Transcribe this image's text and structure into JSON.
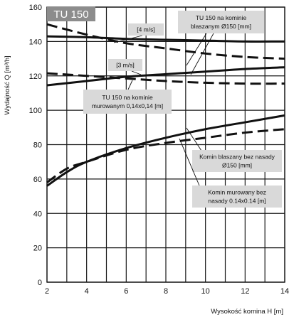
{
  "chart_data": {
    "type": "line",
    "badge": "TU 150",
    "xlabel": "Wysokość komina H [m]",
    "ylabel": "Wydajność Q [m³/h]",
    "xlim": [
      2,
      14
    ],
    "ylim": [
      0,
      160
    ],
    "x_ticks": [
      "2",
      "4",
      "6",
      "8",
      "10",
      "12",
      "14"
    ],
    "y_ticks": [
      "0",
      "20",
      "40",
      "60",
      "80",
      "100",
      "120",
      "140",
      "160"
    ],
    "grid": true,
    "series": [
      {
        "style": "solid",
        "x": [
          2,
          4,
          6,
          8,
          10,
          12,
          14
        ],
        "y": [
          114.5,
          117,
          119.5,
          121,
          122.5,
          124,
          125
        ]
      },
      {
        "style": "dashed",
        "x": [
          2,
          4,
          6,
          8,
          10,
          12,
          14
        ],
        "y": [
          121.5,
          120,
          118.5,
          117,
          116,
          115.5,
          115.5
        ]
      },
      {
        "style": "solid",
        "x": [
          2,
          4,
          6,
          8,
          10,
          12,
          14
        ],
        "y": [
          143,
          142.5,
          141.5,
          141,
          140.5,
          140,
          140
        ]
      },
      {
        "style": "dashed",
        "x": [
          2,
          4,
          6,
          8,
          10,
          12,
          14
        ],
        "y": [
          150,
          144,
          139,
          136,
          133,
          131,
          130
        ]
      },
      {
        "style": "solid",
        "x": [
          2,
          3,
          4,
          6,
          8,
          10,
          12,
          14
        ],
        "y": [
          56,
          64,
          70,
          78,
          84,
          89,
          93,
          97
        ]
      },
      {
        "style": "dashed",
        "x": [
          2,
          3,
          4,
          6,
          8,
          10,
          12,
          14
        ],
        "y": [
          58,
          66,
          70,
          77,
          81,
          84,
          87,
          89
        ]
      }
    ],
    "annotations": [
      {
        "text": "[4 m/s]",
        "x": 8,
        "y": 145
      },
      {
        "text": "[3 m/s]",
        "x": 7.5,
        "y": 122
      },
      {
        "text": "TU 150 na kominie",
        "x": 11.2,
        "y": 155
      },
      {
        "text": "blaszanym Ø150 [mm]",
        "x": 11.2,
        "y": 150
      },
      {
        "text": "TU 150 na kominie",
        "x": 6,
        "y": 101
      },
      {
        "text": "murowanym 0,14x0,14 [m]",
        "x": 6,
        "y": 96
      },
      {
        "text": "Komin blaszany bez nasady",
        "x": 11.2,
        "y": 72
      },
      {
        "text": "Ø150 [mm]",
        "x": 11.2,
        "y": 67
      },
      {
        "text": "Komin murowany bez",
        "x": 11.2,
        "y": 52
      },
      {
        "text": "nasady 0.14x0.14 [m]",
        "x": 11.2,
        "y": 47
      }
    ],
    "colors": {
      "line": "#111111",
      "grid": "#1a1a1a",
      "box": "#d9d9d9",
      "badge": "#8c8c8c"
    }
  }
}
